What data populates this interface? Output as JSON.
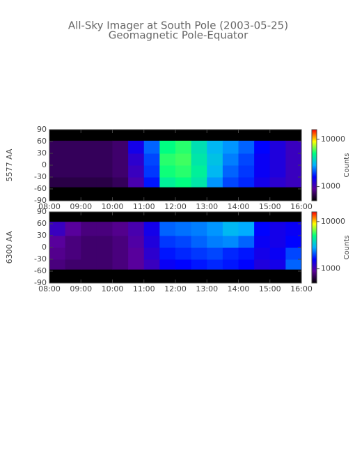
{
  "chart_data": [
    {
      "type": "heatmap",
      "title": "All-Sky Imager at South Pole (2003-05-25)",
      "subtitle": "Geomagnetic Pole-Equator",
      "ylabel": "5577 AA",
      "zlabel": "Counts",
      "xlim": [
        8,
        16
      ],
      "xticks": [
        {
          "value": 8,
          "label": "08:00"
        },
        {
          "value": 9,
          "label": "09:00"
        },
        {
          "value": 10,
          "label": "10:00"
        },
        {
          "value": 11,
          "label": "11:00"
        },
        {
          "value": 12,
          "label": "12:00"
        },
        {
          "value": 13,
          "label": "13:00"
        },
        {
          "value": 14,
          "label": "14:00"
        },
        {
          "value": 15,
          "label": "15:00"
        },
        {
          "value": 16,
          "label": "16:00"
        }
      ],
      "ylim": [
        -90,
        90
      ],
      "yticks": [
        90,
        60,
        30,
        0,
        -30,
        -60,
        -90
      ],
      "zlim": [
        500,
        16000
      ],
      "zticks": [
        1000,
        10000
      ],
      "log_scale_z": true,
      "colormap": [
        "#000000",
        "#5a009a",
        "#0000ff",
        "#00b0ff",
        "#00ff80",
        "#ffff00",
        "#ff0000"
      ],
      "bins": [
        8,
        8.5,
        9,
        9.5,
        10,
        10.5,
        11,
        11.5,
        12,
        12.5,
        13,
        13.5,
        14,
        14.5,
        15,
        15.5,
        16
      ],
      "ybins": [
        -55,
        -30,
        0,
        30,
        62
      ],
      "values": [
        [
          650,
          650,
          650,
          650,
          700,
          1000,
          1700,
          4500,
          5000,
          4200,
          2600,
          2000,
          1800,
          1400,
          1200,
          1100
        ],
        [
          700,
          700,
          700,
          700,
          750,
          1100,
          1900,
          5200,
          5500,
          4500,
          3000,
          2200,
          1900,
          1500,
          1300,
          1100
        ],
        [
          700,
          700,
          700,
          700,
          750,
          1200,
          2000,
          5500,
          5800,
          4200,
          3200,
          2400,
          2000,
          1500,
          1300,
          1100
        ],
        [
          700,
          700,
          700,
          700,
          750,
          1400,
          2200,
          5000,
          5500,
          4000,
          3000,
          2600,
          2200,
          1600,
          1300,
          1100
        ]
      ]
    },
    {
      "type": "heatmap",
      "ylabel": "6300 AA",
      "zlabel": "Counts",
      "xlim": [
        8,
        16
      ],
      "xticks": [
        {
          "value": 8,
          "label": "08:00"
        },
        {
          "value": 9,
          "label": "09:00"
        },
        {
          "value": 10,
          "label": "10:00"
        },
        {
          "value": 11,
          "label": "11:00"
        },
        {
          "value": 12,
          "label": "12:00"
        },
        {
          "value": 13,
          "label": "13:00"
        },
        {
          "value": 14,
          "label": "14:00"
        },
        {
          "value": 15,
          "label": "15:00"
        },
        {
          "value": 16,
          "label": "16:00"
        }
      ],
      "ylim": [
        -90,
        90
      ],
      "yticks": [
        90,
        60,
        30,
        0,
        -30,
        -60,
        -90
      ],
      "zlim": [
        500,
        16000
      ],
      "zticks": [
        1000,
        10000
      ],
      "log_scale_z": true,
      "colormap": [
        "#000000",
        "#5a009a",
        "#0000ff",
        "#00b0ff",
        "#00ff80",
        "#ffff00",
        "#ff0000"
      ],
      "bins": [
        8,
        8.5,
        9,
        9.5,
        10,
        10.5,
        11,
        11.5,
        12,
        12.5,
        13,
        13.5,
        14,
        14.5,
        15,
        15.5,
        16
      ],
      "ybins": [
        -55,
        -30,
        0,
        30,
        65
      ],
      "values": [
        [
          800,
          750,
          750,
          750,
          800,
          900,
          1100,
          1500,
          1600,
          1700,
          1800,
          1700,
          1600,
          1300,
          1400,
          2200
        ],
        [
          850,
          800,
          750,
          750,
          800,
          900,
          1200,
          1700,
          1800,
          1900,
          2000,
          1800,
          1700,
          1400,
          1500,
          2000
        ],
        [
          900,
          800,
          750,
          750,
          800,
          950,
          1300,
          1900,
          2000,
          2200,
          2400,
          2500,
          2200,
          1500,
          1400,
          1600
        ],
        [
          1100,
          900,
          800,
          800,
          850,
          1000,
          1400,
          2200,
          2300,
          2400,
          2600,
          3000,
          2800,
          1600,
          1400,
          1500
        ]
      ]
    }
  ]
}
